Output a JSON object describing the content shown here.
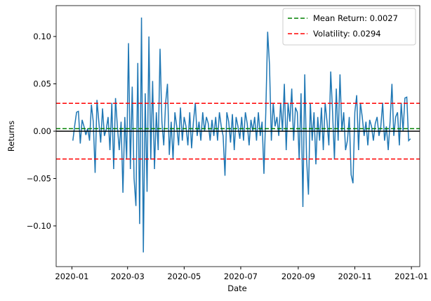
{
  "chart_data": {
    "type": "line",
    "x_label": "Date",
    "y_label": "Returns",
    "x": [
      1,
      3,
      5,
      7,
      9,
      11,
      13,
      15,
      17,
      19,
      21,
      23,
      25,
      27,
      29,
      31,
      33,
      35,
      37,
      39,
      41,
      43,
      45,
      47,
      49,
      51,
      53,
      55,
      57,
      59,
      61,
      63,
      65,
      67,
      69,
      71,
      73,
      75,
      77,
      79,
      81,
      83,
      85,
      87,
      89,
      91,
      93,
      95,
      97,
      99,
      101,
      103,
      105,
      107,
      109,
      111,
      113,
      115,
      117,
      119,
      121,
      123,
      125,
      127,
      129,
      131,
      133,
      135,
      137,
      139,
      141,
      143,
      145,
      147,
      149,
      151,
      153,
      155,
      157,
      159,
      161,
      163,
      165,
      167,
      169,
      171,
      173,
      175,
      177,
      179,
      181,
      183,
      185,
      187,
      189,
      191,
      193,
      195,
      197,
      199,
      201,
      203,
      205,
      207,
      209,
      211,
      213,
      215,
      217,
      219,
      221,
      223,
      225,
      227,
      229,
      231,
      233,
      235,
      237,
      239,
      241,
      243,
      245,
      247,
      249,
      251,
      253,
      255,
      257,
      259,
      261,
      263,
      265,
      267,
      269,
      271,
      273,
      275,
      277,
      279,
      281,
      283,
      285,
      287,
      289,
      291,
      293,
      295,
      297,
      299,
      301,
      303,
      305,
      307,
      309,
      311,
      313,
      315,
      317,
      319,
      321,
      323,
      325,
      327,
      329,
      331,
      333,
      335,
      337,
      339,
      341,
      343,
      345,
      347,
      349,
      351,
      353,
      355,
      357,
      359,
      361,
      363,
      365
    ],
    "values": [
      -0.01,
      0.006,
      0.02,
      0.021,
      -0.013,
      0.012,
      0.005,
      -0.004,
      0.003,
      -0.01,
      0.028,
      0.01,
      -0.044,
      0.033,
      0.01,
      -0.012,
      0.024,
      -0.005,
      0.002,
      0.015,
      -0.02,
      0.03,
      -0.04,
      0.035,
      0.005,
      -0.02,
      0.01,
      -0.065,
      0.015,
      -0.03,
      0.093,
      -0.04,
      0.047,
      -0.05,
      -0.079,
      0.072,
      -0.098,
      0.12,
      -0.128,
      0.04,
      -0.064,
      0.1,
      -0.03,
      0.053,
      -0.04,
      0.02,
      -0.02,
      0.087,
      0.01,
      -0.015,
      0.03,
      0.05,
      -0.025,
      0.01,
      -0.03,
      0.02,
      0.005,
      -0.015,
      0.025,
      -0.01,
      0.015,
      0.005,
      -0.015,
      0.02,
      -0.018,
      0.01,
      0.03,
      -0.005,
      0.01,
      -0.01,
      0.02,
      0.0,
      0.015,
      0.008,
      -0.01,
      0.012,
      -0.005,
      0.015,
      -0.01,
      0.02,
      0.005,
      -0.005,
      -0.047,
      0.02,
      0.01,
      -0.012,
      0.018,
      -0.02,
      0.015,
      0.005,
      -0.008,
      0.015,
      -0.01,
      0.02,
      0.008,
      -0.015,
      0.012,
      0.0,
      0.015,
      -0.01,
      0.02,
      -0.005,
      0.01,
      -0.045,
      0.02,
      0.105,
      0.07,
      -0.01,
      0.03,
      0.005,
      0.015,
      -0.005,
      0.03,
      0.0,
      0.05,
      -0.02,
      0.03,
      0.01,
      0.045,
      -0.01,
      0.025,
      0.02,
      -0.03,
      0.04,
      -0.08,
      0.06,
      -0.03,
      -0.067,
      0.03,
      -0.01,
      0.02,
      -0.035,
      0.015,
      -0.01,
      0.025,
      -0.02,
      0.03,
      0.01,
      -0.015,
      0.063,
      0.02,
      -0.03,
      0.045,
      -0.01,
      0.06,
      0.0,
      0.02,
      -0.02,
      -0.01,
      0.015,
      -0.046,
      -0.055,
      0.02,
      0.038,
      -0.02,
      0.03,
      0.015,
      -0.005,
      0.01,
      -0.015,
      0.012,
      0.005,
      -0.01,
      0.008,
      0.015,
      -0.005,
      0.005,
      0.03,
      -0.01,
      0.005,
      -0.02,
      0.01,
      0.05,
      -0.005,
      0.015,
      0.02,
      -0.015,
      0.03,
      0.0,
      0.035,
      0.036,
      -0.01,
      -0.008
    ],
    "color": "#1f77b4",
    "baseline": {
      "value": 0,
      "color": "black"
    },
    "hlines": [
      {
        "name": "Mean Return: 0.0027",
        "value": 0.0027,
        "color": "green",
        "mirrored": false
      },
      {
        "name": "Volatility: 0.0294",
        "value": 0.0294,
        "color": "red",
        "mirrored": true
      }
    ],
    "legend": "upper right",
    "xlim": [
      -17,
      375
    ],
    "ylim": [
      -0.143,
      0.1326
    ],
    "xticks": [
      {
        "value": 0,
        "label": "2020-01"
      },
      {
        "value": 60,
        "label": "2020-03"
      },
      {
        "value": 121,
        "label": "2020-05"
      },
      {
        "value": 182,
        "label": "2020-07"
      },
      {
        "value": 244,
        "label": "2020-09"
      },
      {
        "value": 305,
        "label": "2020-11"
      },
      {
        "value": 366,
        "label": "2021-01"
      }
    ],
    "yticks": [
      {
        "value": -0.1,
        "label": "−0.10"
      },
      {
        "value": -0.05,
        "label": "−0.05"
      },
      {
        "value": 0,
        "label": "0.00"
      },
      {
        "value": 0.05,
        "label": "0.05"
      },
      {
        "value": 0.1,
        "label": "0.10"
      }
    ]
  }
}
